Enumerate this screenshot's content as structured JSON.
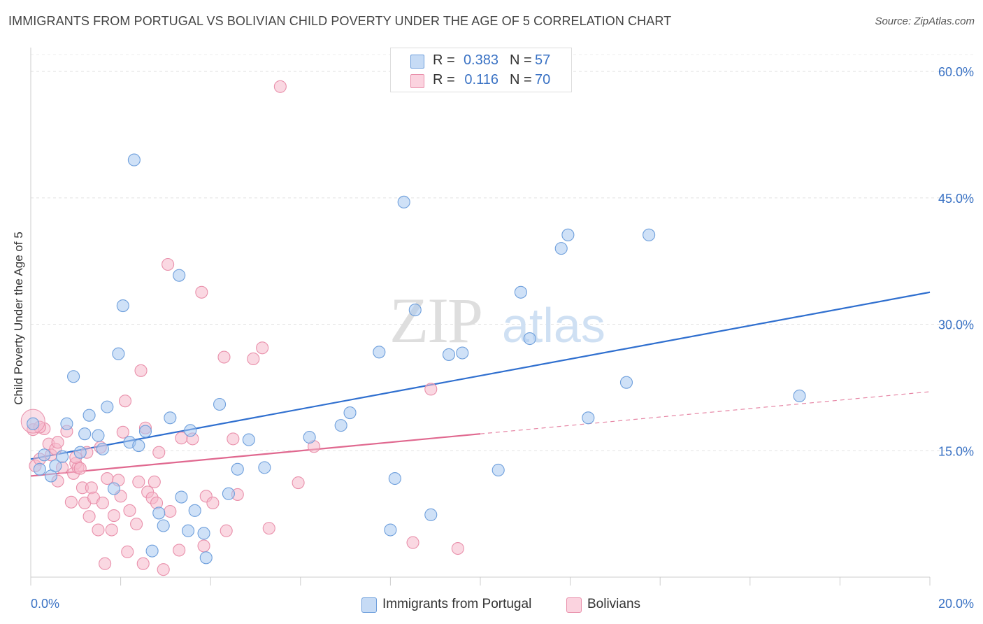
{
  "title": "IMMIGRANTS FROM PORTUGAL VS BOLIVIAN CHILD POVERTY UNDER THE AGE OF 5 CORRELATION CHART",
  "source": "Source: ZipAtlas.com",
  "watermark": {
    "zip": "ZIP",
    "atlas": "atlas"
  },
  "legend": {
    "rows": [
      {
        "r_label": "R =",
        "r_value": "0.383",
        "n_label": "N =",
        "n_value": "57",
        "color": "#a8c8f0"
      },
      {
        "r_label": "R =",
        "r_value": "0.116",
        "n_label": "N =",
        "n_value": "70",
        "color": "#f5b8cb"
      }
    ]
  },
  "bottom_legend": {
    "series1": "Immigrants from Portugal",
    "series2": "Bolivians"
  },
  "colors": {
    "blue_fill": "#a8c8f0",
    "blue_stroke": "#6e9fdc",
    "blue_line": "#2f6fcf",
    "pink_fill": "#f5b8cb",
    "pink_stroke": "#e990ab",
    "pink_line": "#e0688f",
    "axis_text": "#3a72c4"
  },
  "chart_data": {
    "type": "scatter",
    "title": "IMMIGRANTS FROM PORTUGAL VS BOLIVIAN CHILD POVERTY UNDER THE AGE OF 5 CORRELATION CHART",
    "xlabel": "",
    "ylabel": "Child Poverty Under the Age of 5",
    "xlim": [
      0,
      20
    ],
    "ylim": [
      0,
      62
    ],
    "x_tick_labels": [
      "0.0%",
      "20.0%"
    ],
    "y_ticks": [
      15,
      30,
      45,
      60
    ],
    "y_tick_labels": [
      "15.0%",
      "30.0%",
      "45.0%",
      "60.0%"
    ],
    "grid": true,
    "legend_placement": "top-center",
    "series": [
      {
        "name": "Immigrants from Portugal",
        "r": 0.383,
        "n": 57,
        "trend": {
          "x": [
            0,
            20
          ],
          "y": [
            14.0,
            33.8
          ]
        },
        "points": [
          [
            0.05,
            18.2
          ],
          [
            0.2,
            12.8
          ],
          [
            0.3,
            14.5
          ],
          [
            0.45,
            12.0
          ],
          [
            0.55,
            13.2
          ],
          [
            0.7,
            14.3
          ],
          [
            0.8,
            18.2
          ],
          [
            0.95,
            23.8
          ],
          [
            1.1,
            14.8
          ],
          [
            1.2,
            17.0
          ],
          [
            1.3,
            19.2
          ],
          [
            1.5,
            16.8
          ],
          [
            1.6,
            15.2
          ],
          [
            1.7,
            20.2
          ],
          [
            1.85,
            10.5
          ],
          [
            1.95,
            26.5
          ],
          [
            2.05,
            32.2
          ],
          [
            2.2,
            16.0
          ],
          [
            2.3,
            49.5
          ],
          [
            2.4,
            15.6
          ],
          [
            2.55,
            17.3
          ],
          [
            2.7,
            3.1
          ],
          [
            2.85,
            7.6
          ],
          [
            2.95,
            6.1
          ],
          [
            3.1,
            18.9
          ],
          [
            3.3,
            35.8
          ],
          [
            3.35,
            9.5
          ],
          [
            3.5,
            5.5
          ],
          [
            3.55,
            17.4
          ],
          [
            3.65,
            7.9
          ],
          [
            3.85,
            5.2
          ],
          [
            3.9,
            2.3
          ],
          [
            4.2,
            20.5
          ],
          [
            4.4,
            9.9
          ],
          [
            4.6,
            12.8
          ],
          [
            4.85,
            16.3
          ],
          [
            5.2,
            13.0
          ],
          [
            6.2,
            16.6
          ],
          [
            6.9,
            18.0
          ],
          [
            7.1,
            19.5
          ],
          [
            7.75,
            26.7
          ],
          [
            8.0,
            5.6
          ],
          [
            8.1,
            11.7
          ],
          [
            8.3,
            44.5
          ],
          [
            8.55,
            31.7
          ],
          [
            8.9,
            7.4
          ],
          [
            9.3,
            26.4
          ],
          [
            9.6,
            26.6
          ],
          [
            10.4,
            12.7
          ],
          [
            10.9,
            33.8
          ],
          [
            11.1,
            28.3
          ],
          [
            11.8,
            39.0
          ],
          [
            11.95,
            40.6
          ],
          [
            12.4,
            18.9
          ],
          [
            13.25,
            23.1
          ],
          [
            13.75,
            40.6
          ],
          [
            17.1,
            21.5
          ]
        ]
      },
      {
        "name": "Bolivians",
        "r": 0.116,
        "n": 70,
        "trend": {
          "x": [
            0,
            10
          ],
          "y": [
            12.0,
            17.0
          ]
        },
        "trend_dashed": {
          "x": [
            10,
            20
          ],
          "y": [
            17.0,
            22.0
          ]
        },
        "points": [
          [
            0.05,
            17.5
          ],
          [
            0.1,
            13.2
          ],
          [
            0.2,
            14.0
          ],
          [
            0.3,
            17.6
          ],
          [
            0.4,
            15.8
          ],
          [
            0.45,
            14.5
          ],
          [
            0.55,
            15.2
          ],
          [
            0.6,
            11.4
          ],
          [
            0.7,
            13.0
          ],
          [
            0.8,
            17.3
          ],
          [
            0.9,
            8.9
          ],
          [
            0.95,
            12.3
          ],
          [
            1.0,
            13.5
          ],
          [
            1.05,
            13.0
          ],
          [
            1.1,
            12.9
          ],
          [
            1.15,
            10.6
          ],
          [
            1.2,
            8.8
          ],
          [
            1.25,
            14.8
          ],
          [
            1.3,
            7.2
          ],
          [
            1.35,
            10.6
          ],
          [
            1.4,
            9.4
          ],
          [
            1.5,
            5.6
          ],
          [
            1.55,
            15.4
          ],
          [
            1.6,
            8.8
          ],
          [
            1.65,
            1.6
          ],
          [
            1.7,
            11.7
          ],
          [
            1.8,
            5.6
          ],
          [
            1.85,
            7.3
          ],
          [
            1.95,
            11.5
          ],
          [
            2.0,
            9.6
          ],
          [
            2.05,
            17.2
          ],
          [
            2.1,
            20.9
          ],
          [
            2.15,
            3.0
          ],
          [
            2.2,
            7.9
          ],
          [
            2.35,
            6.3
          ],
          [
            2.4,
            11.3
          ],
          [
            2.45,
            24.5
          ],
          [
            2.5,
            1.6
          ],
          [
            2.55,
            17.7
          ],
          [
            2.6,
            10.1
          ],
          [
            2.7,
            9.4
          ],
          [
            2.75,
            11.3
          ],
          [
            2.8,
            8.8
          ],
          [
            2.85,
            14.8
          ],
          [
            2.95,
            0.9
          ],
          [
            3.05,
            37.1
          ],
          [
            3.1,
            7.8
          ],
          [
            3.3,
            3.2
          ],
          [
            3.35,
            16.5
          ],
          [
            3.6,
            16.4
          ],
          [
            3.8,
            33.8
          ],
          [
            3.85,
            3.7
          ],
          [
            3.9,
            9.6
          ],
          [
            4.05,
            8.8
          ],
          [
            4.3,
            26.1
          ],
          [
            4.35,
            5.5
          ],
          [
            4.5,
            16.4
          ],
          [
            4.6,
            9.8
          ],
          [
            4.95,
            25.9
          ],
          [
            5.15,
            27.2
          ],
          [
            5.3,
            5.8
          ],
          [
            5.55,
            58.2
          ],
          [
            5.95,
            11.2
          ],
          [
            6.3,
            15.5
          ],
          [
            8.5,
            4.1
          ],
          [
            8.9,
            22.3
          ],
          [
            9.5,
            3.4
          ],
          [
            0.2,
            17.8
          ],
          [
            0.6,
            16.0
          ],
          [
            1.0,
            14.2
          ]
        ]
      }
    ]
  }
}
